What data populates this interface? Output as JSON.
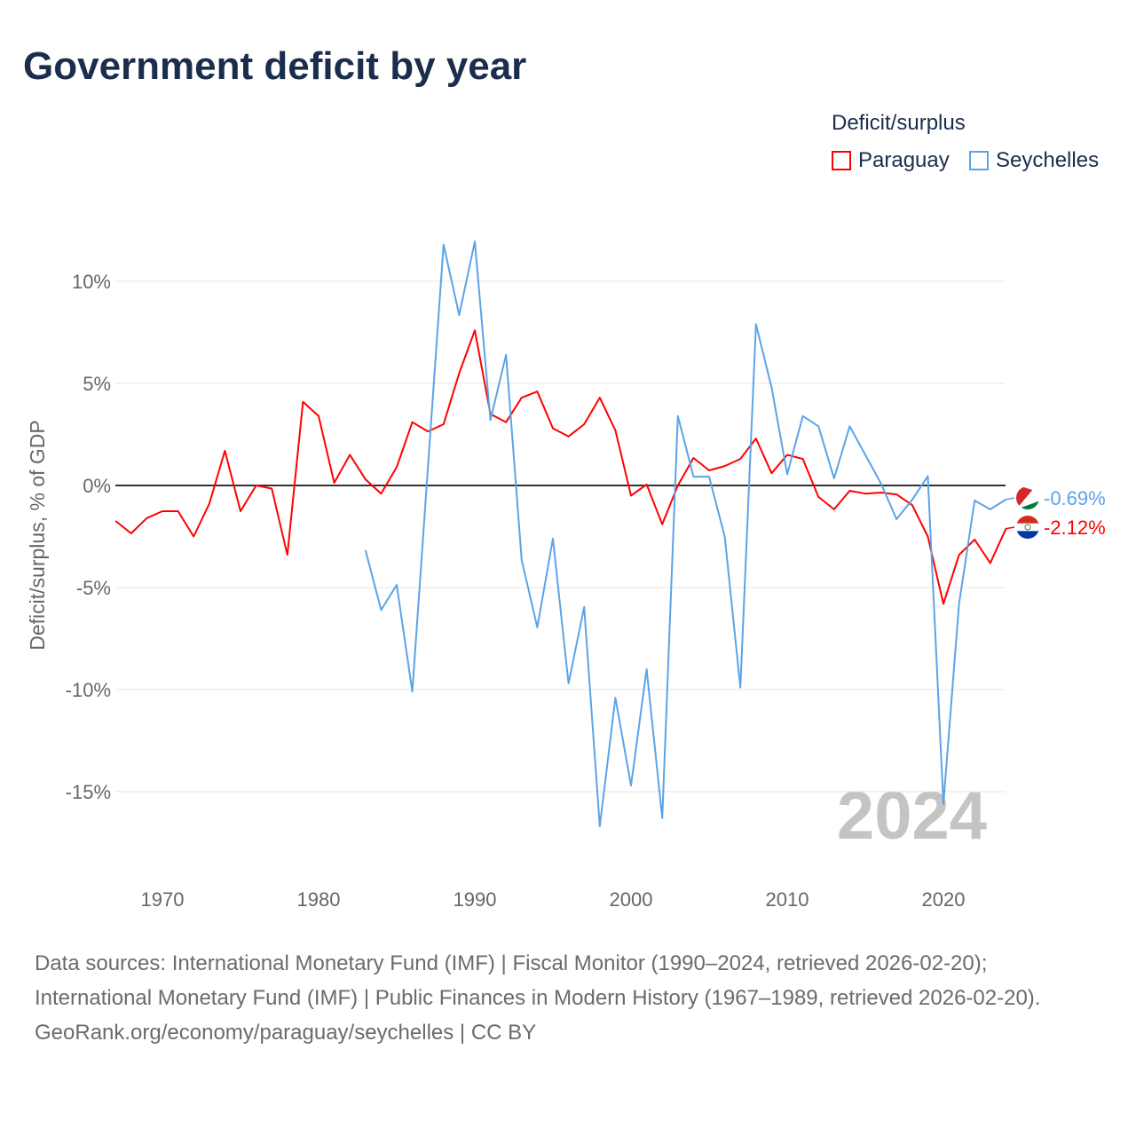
{
  "title": "Government deficit by year",
  "legend": {
    "title": "Deficit/surplus",
    "items": [
      "Paraguay",
      "Seychelles"
    ]
  },
  "sources": {
    "line1": "Data sources: International Monetary Fund (IMF) | Fiscal Monitor (1990–2024, retrieved 2026-02-20); International Monetary Fund (IMF) | Public Finances in Modern History (1967–1989, retrieved 2026-02-20).",
    "line2": "GeoRank.org/economy/paraguay/seychelles | CC BY"
  },
  "chart_data": {
    "type": "line",
    "title": "Government deficit by year",
    "xlabel": "",
    "ylabel": "Deficit/surplus, % of GDP",
    "xlim": [
      1967,
      2024
    ],
    "ylim": [
      -18,
      14
    ],
    "xticks": [
      1970,
      1980,
      1990,
      2000,
      2010,
      2020
    ],
    "xtick_labels": [
      "1970",
      "1980",
      "1990",
      "2000",
      "2010",
      "2020"
    ],
    "yticks": [
      10,
      5,
      0,
      -5,
      -10,
      -15
    ],
    "ytick_labels": [
      "10%",
      "5%",
      "0%",
      "-5%",
      "-10%",
      "-15%"
    ],
    "year_watermark": "2024",
    "grid": true,
    "legend_position": "top-right",
    "series": [
      {
        "name": "Paraguay",
        "color": "#ff0000",
        "end_label": "-2.12%",
        "start_year": 1967,
        "values": [
          -1.74,
          -2.35,
          -1.6,
          -1.26,
          -1.26,
          -2.5,
          -0.9,
          1.7,
          -1.26,
          0,
          -0.15,
          -3.4,
          4.1,
          3.4,
          0.13,
          1.5,
          0.3,
          -0.4,
          0.9,
          3.1,
          2.65,
          3.0,
          5.5,
          7.6,
          3.5,
          3.1,
          4.3,
          4.6,
          2.8,
          2.4,
          3.0,
          4.3,
          2.7,
          -0.5,
          0.05,
          -1.9,
          0,
          1.35,
          0.74,
          0.95,
          1.3,
          2.3,
          0.6,
          1.5,
          1.3,
          -0.56,
          -1.17,
          -0.26,
          -0.4,
          -0.35,
          -0.44,
          -0.96,
          -2.5,
          -5.8,
          -3.4,
          -2.65,
          -3.8,
          -2.12
        ]
      },
      {
        "name": "Seychelles",
        "color": "#5ba3e8",
        "end_label": "-0.69%",
        "start_year": 1983,
        "values": [
          -3.17,
          -6.1,
          -4.87,
          -10.1,
          0.9,
          11.8,
          8.35,
          11.95,
          3.2,
          6.4,
          -3.65,
          -6.95,
          -2.6,
          -9.7,
          -5.95,
          -16.7,
          -10.4,
          -14.7,
          -9.0,
          -16.3,
          3.4,
          0.43,
          0.43,
          -2.5,
          -9.9,
          7.9,
          4.8,
          0.55,
          3.4,
          2.9,
          0.35,
          2.9,
          1.5,
          0.1,
          -1.65,
          -0.7,
          0.45,
          -15.6,
          -5.8,
          -0.74,
          -1.17,
          -0.69
        ]
      }
    ]
  }
}
